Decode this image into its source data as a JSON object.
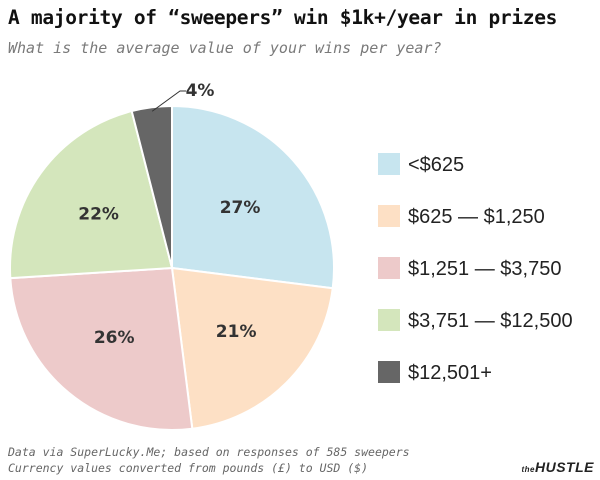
{
  "header": {
    "title": "A majority of “sweepers” win $1k+/year in prizes",
    "subtitle": "What is the average value of your wins per year?"
  },
  "footer": {
    "source_line1": "Data via SuperLucky.Me; based on responses of 585 sweepers",
    "source_line2": "Currency values converted from pounds (£) to USD ($)",
    "brand_prefix": "the",
    "brand_name": "HUSTLE"
  },
  "chart_data": {
    "type": "pie",
    "categories": [
      "<$625",
      "$625 — $1,250",
      "$1,251 — $3,750",
      "$3,751 — $12,500",
      "$12,501+"
    ],
    "values": [
      27,
      21,
      26,
      22,
      4
    ],
    "labels": [
      "27%",
      "21%",
      "26%",
      "22%",
      "4%"
    ],
    "colors": [
      "#c7e5ef",
      "#fde0c5",
      "#edcaca",
      "#d4e6bc",
      "#666666"
    ],
    "legend_placement": "right",
    "start": "top, clockwise"
  }
}
